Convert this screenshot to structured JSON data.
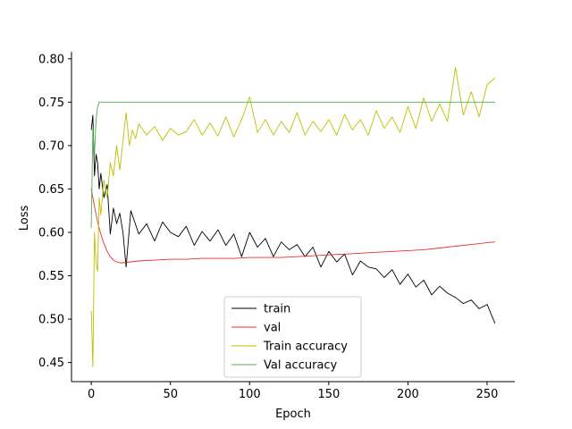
{
  "chart_data": {
    "type": "line",
    "xlabel": "Epoch",
    "ylabel": "Loss",
    "xlim": [
      -12.5,
      267.5
    ],
    "ylim": [
      0.428,
      0.808
    ],
    "xticks": [
      0,
      50,
      100,
      150,
      200,
      250
    ],
    "yticks": [
      0.45,
      0.5,
      0.55,
      0.6,
      0.65,
      0.7,
      0.75,
      0.8
    ],
    "xtick_labels": [
      "0",
      "50",
      "100",
      "150",
      "200",
      "250"
    ],
    "ytick_labels": [
      "0.45",
      "0.50",
      "0.55",
      "0.60",
      "0.65",
      "0.70",
      "0.75",
      "0.80"
    ],
    "legend_position": "lower-center",
    "grid": false,
    "series": [
      {
        "name": "train",
        "color": "#000000",
        "x": [
          0,
          1,
          2,
          3,
          4,
          5,
          6,
          8,
          10,
          12,
          14,
          16,
          18,
          20,
          22,
          25,
          30,
          35,
          40,
          45,
          50,
          55,
          60,
          65,
          70,
          75,
          80,
          85,
          90,
          95,
          100,
          105,
          110,
          115,
          120,
          125,
          130,
          135,
          140,
          145,
          150,
          155,
          160,
          165,
          170,
          175,
          180,
          185,
          190,
          195,
          200,
          205,
          210,
          215,
          220,
          225,
          230,
          235,
          240,
          245,
          250,
          255
        ],
        "y": [
          0.718,
          0.735,
          0.665,
          0.69,
          0.68,
          0.65,
          0.668,
          0.64,
          0.655,
          0.598,
          0.628,
          0.61,
          0.622,
          0.6,
          0.56,
          0.625,
          0.598,
          0.61,
          0.59,
          0.612,
          0.6,
          0.595,
          0.607,
          0.585,
          0.601,
          0.59,
          0.603,
          0.585,
          0.598,
          0.572,
          0.6,
          0.583,
          0.593,
          0.572,
          0.589,
          0.58,
          0.586,
          0.572,
          0.583,
          0.56,
          0.578,
          0.566,
          0.575,
          0.551,
          0.567,
          0.56,
          0.558,
          0.548,
          0.557,
          0.54,
          0.552,
          0.537,
          0.545,
          0.528,
          0.538,
          0.53,
          0.525,
          0.518,
          0.522,
          0.512,
          0.517,
          0.495
        ]
      },
      {
        "name": "val",
        "color": "#e8302a",
        "x": [
          0,
          2,
          4,
          6,
          8,
          10,
          12,
          14,
          16,
          18,
          20,
          25,
          30,
          40,
          50,
          60,
          70,
          80,
          90,
          100,
          110,
          120,
          130,
          140,
          150,
          160,
          170,
          180,
          190,
          200,
          210,
          220,
          230,
          240,
          250,
          255
        ],
        "y": [
          0.65,
          0.63,
          0.612,
          0.598,
          0.587,
          0.578,
          0.572,
          0.568,
          0.566,
          0.565,
          0.565,
          0.566,
          0.567,
          0.568,
          0.569,
          0.569,
          0.57,
          0.57,
          0.57,
          0.571,
          0.571,
          0.571,
          0.572,
          0.573,
          0.574,
          0.575,
          0.576,
          0.577,
          0.578,
          0.579,
          0.58,
          0.582,
          0.584,
          0.586,
          0.588,
          0.589
        ]
      },
      {
        "name": "Train accuracy",
        "color": "#bfbf00",
        "x": [
          0,
          1,
          2,
          3,
          4,
          5,
          6,
          8,
          10,
          12,
          14,
          16,
          18,
          20,
          22,
          24,
          26,
          28,
          30,
          35,
          40,
          45,
          50,
          55,
          60,
          65,
          70,
          75,
          80,
          85,
          90,
          95,
          100,
          105,
          110,
          115,
          120,
          125,
          130,
          135,
          140,
          145,
          150,
          155,
          160,
          165,
          170,
          175,
          180,
          185,
          190,
          195,
          200,
          205,
          210,
          215,
          220,
          225,
          230,
          235,
          240,
          245,
          250,
          255
        ],
        "y": [
          0.51,
          0.445,
          0.6,
          0.565,
          0.555,
          0.64,
          0.62,
          0.66,
          0.64,
          0.68,
          0.665,
          0.7,
          0.672,
          0.705,
          0.738,
          0.7,
          0.718,
          0.708,
          0.725,
          0.712,
          0.722,
          0.706,
          0.72,
          0.712,
          0.716,
          0.73,
          0.712,
          0.726,
          0.711,
          0.733,
          0.71,
          0.73,
          0.756,
          0.715,
          0.73,
          0.712,
          0.728,
          0.715,
          0.738,
          0.712,
          0.728,
          0.716,
          0.73,
          0.712,
          0.736,
          0.718,
          0.73,
          0.712,
          0.74,
          0.72,
          0.733,
          0.715,
          0.745,
          0.72,
          0.755,
          0.728,
          0.748,
          0.728,
          0.79,
          0.735,
          0.762,
          0.733,
          0.77,
          0.778
        ]
      },
      {
        "name": "Val accuracy",
        "color": "#4caf4c",
        "x": [
          0,
          1,
          2,
          3,
          4,
          5,
          10,
          50,
          100,
          150,
          200,
          250,
          255
        ],
        "y": [
          0.605,
          0.72,
          0.69,
          0.73,
          0.745,
          0.75,
          0.75,
          0.75,
          0.75,
          0.75,
          0.75,
          0.75,
          0.75
        ]
      }
    ]
  }
}
